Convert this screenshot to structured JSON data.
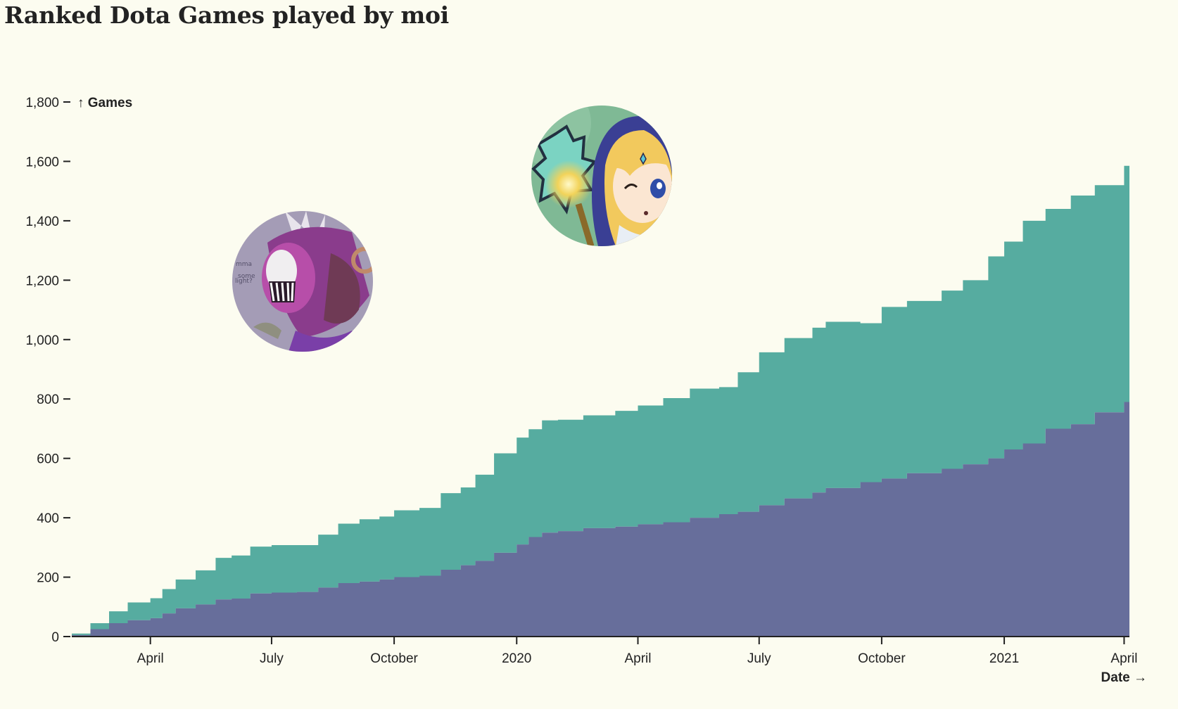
{
  "page": {
    "title": "Ranked Dota Games played by moi"
  },
  "chart_data": {
    "type": "area",
    "stacked": true,
    "title": "Ranked Dota Games played by moi",
    "xlabel": "Date →",
    "ylabel": "↑ Games",
    "ylim": [
      0,
      1800
    ],
    "xlim": [
      "2019-02-01",
      "2021-04-05"
    ],
    "y_ticks": [
      0,
      200,
      400,
      600,
      800,
      1000,
      1200,
      1400,
      1600,
      1800
    ],
    "x_ticks": [
      {
        "date": "2019-04-01",
        "label": "April"
      },
      {
        "date": "2019-07-01",
        "label": "July"
      },
      {
        "date": "2019-10-01",
        "label": "October"
      },
      {
        "date": "2020-01-01",
        "label": "2020"
      },
      {
        "date": "2020-04-01",
        "label": "April"
      },
      {
        "date": "2020-07-01",
        "label": "July"
      },
      {
        "date": "2020-10-01",
        "label": "October"
      },
      {
        "date": "2021-01-01",
        "label": "2021"
      },
      {
        "date": "2021-04-01",
        "label": "April"
      }
    ],
    "colors": {
      "bottom_series": "#676e9b",
      "top_series": "#56aca0",
      "background": "#fcfcf0"
    },
    "hero_images": [
      {
        "icon": "bane-hero-portrait",
        "series": "bottom"
      },
      {
        "icon": "crystal-maiden-hero-portrait",
        "series": "top"
      }
    ],
    "x": [
      "2019-02-01",
      "2019-02-15",
      "2019-03-01",
      "2019-03-15",
      "2019-04-01",
      "2019-04-10",
      "2019-04-20",
      "2019-05-05",
      "2019-05-20",
      "2019-06-01",
      "2019-06-15",
      "2019-07-01",
      "2019-07-20",
      "2019-08-05",
      "2019-08-20",
      "2019-09-05",
      "2019-09-20",
      "2019-10-01",
      "2019-10-20",
      "2019-11-05",
      "2019-11-20",
      "2019-12-01",
      "2019-12-15",
      "2020-01-01",
      "2020-01-10",
      "2020-01-20",
      "2020-02-01",
      "2020-02-20",
      "2020-03-15",
      "2020-04-01",
      "2020-04-20",
      "2020-05-10",
      "2020-06-01",
      "2020-06-15",
      "2020-07-01",
      "2020-07-20",
      "2020-08-10",
      "2020-08-20",
      "2020-09-15",
      "2020-10-01",
      "2020-10-20",
      "2020-11-15",
      "2020-12-01",
      "2020-12-20",
      "2021-01-01",
      "2021-01-15",
      "2021-02-01",
      "2021-02-20",
      "2021-03-10",
      "2021-04-01",
      "2021-04-05"
    ],
    "series": [
      {
        "key": "bottom",
        "values": [
          5,
          25,
          45,
          55,
          62,
          78,
          95,
          108,
          125,
          128,
          145,
          148,
          150,
          165,
          180,
          185,
          192,
          200,
          205,
          225,
          240,
          255,
          282,
          310,
          335,
          350,
          355,
          365,
          370,
          378,
          385,
          400,
          412,
          420,
          442,
          465,
          485,
          500,
          520,
          532,
          550,
          565,
          580,
          600,
          630,
          650,
          700,
          715,
          755,
          790,
          825
        ]
      },
      {
        "key": "top",
        "values": [
          5,
          20,
          40,
          60,
          67,
          82,
          97,
          115,
          140,
          145,
          158,
          160,
          158,
          178,
          200,
          210,
          212,
          225,
          228,
          258,
          262,
          290,
          335,
          360,
          363,
          378,
          375,
          380,
          390,
          400,
          418,
          435,
          428,
          470,
          515,
          540,
          555,
          560,
          535,
          578,
          580,
          600,
          620,
          680,
          700,
          750,
          740,
          770,
          765,
          795,
          835
        ]
      }
    ]
  }
}
